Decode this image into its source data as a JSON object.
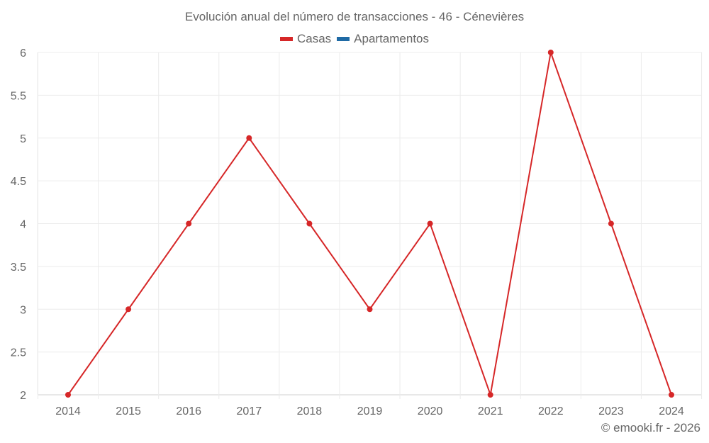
{
  "chart_data": {
    "type": "line",
    "title": "Evolución anual del número de transacciones - 46 - Cénevières",
    "categories": [
      "2014",
      "2015",
      "2016",
      "2017",
      "2018",
      "2019",
      "2020",
      "2021",
      "2022",
      "2023",
      "2024"
    ],
    "series": [
      {
        "name": "Casas",
        "color": "#d62728",
        "values": [
          2,
          3,
          4,
          5,
          4,
          3,
          4,
          2,
          6,
          4,
          2
        ]
      },
      {
        "name": "Apartamentos",
        "color": "#1f6aa5",
        "values": []
      }
    ],
    "xlabel": "",
    "ylabel": "",
    "ylim": [
      2,
      6
    ],
    "yticks": [
      "2",
      "2.5",
      "3",
      "3.5",
      "4",
      "4.5",
      "5",
      "5.5",
      "6"
    ],
    "grid": true,
    "legend_position": "top"
  },
  "legend": [
    {
      "label": "Casas",
      "color": "#d62728"
    },
    {
      "label": "Apartamentos",
      "color": "#1f6aa5"
    }
  ],
  "credit": "© emooki.fr - 2026"
}
